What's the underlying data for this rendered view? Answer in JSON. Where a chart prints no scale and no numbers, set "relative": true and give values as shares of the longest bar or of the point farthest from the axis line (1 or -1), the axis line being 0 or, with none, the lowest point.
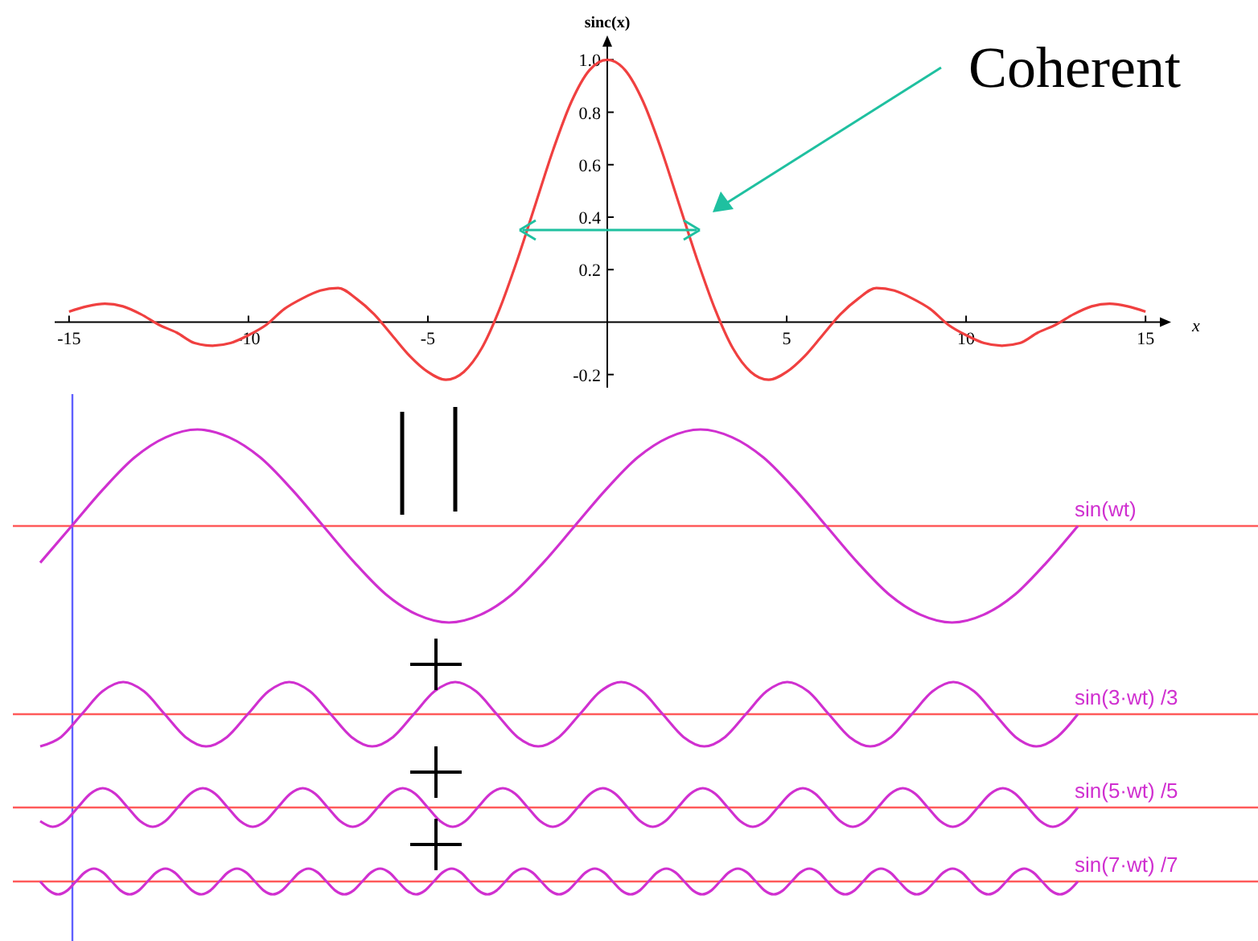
{
  "chart_data": [
    {
      "type": "line",
      "xlabel": "x",
      "ylabel": "sinc(x)",
      "annotations": [
        "Coherent"
      ],
      "x": [
        -15,
        -14.5,
        -14,
        -13.5,
        -13,
        -12.5,
        -12,
        -11.5,
        -11,
        -10.5,
        -10,
        -9.5,
        -9,
        -8.5,
        -8,
        -7.5,
        -7,
        -6.5,
        -6,
        -5.5,
        -5,
        -4.5,
        -4,
        -3.5,
        -3,
        -2.5,
        -2,
        -1.5,
        -1,
        -0.5,
        0,
        0.5,
        1,
        1.5,
        2,
        2.5,
        3,
        3.5,
        4,
        4.5,
        5,
        5.5,
        6,
        6.5,
        7,
        7.5,
        8,
        8.5,
        9,
        9.5,
        10,
        10.5,
        11,
        11.5,
        12,
        12.5,
        13,
        13.5,
        14,
        14.5,
        15
      ],
      "series": [
        {
          "color": "#f04040",
          "values": [
            0.04,
            0.06,
            0.07,
            0.06,
            0.03,
            -0.01,
            -0.04,
            -0.08,
            -0.09,
            -0.08,
            -0.05,
            -0.01,
            0.05,
            0.09,
            0.12,
            0.13,
            0.09,
            0.03,
            -0.05,
            -0.13,
            -0.19,
            -0.22,
            -0.19,
            -0.1,
            0.05,
            0.24,
            0.45,
            0.66,
            0.84,
            0.96,
            1,
            0.96,
            0.84,
            0.66,
            0.45,
            0.24,
            0.05,
            -0.1,
            -0.19,
            -0.22,
            -0.19,
            -0.13,
            -0.05,
            0.03,
            0.09,
            0.13,
            0.12,
            0.09,
            0.05,
            -0.01,
            -0.05,
            -0.08,
            -0.09,
            -0.08,
            -0.04,
            -0.01,
            0.03,
            0.06,
            0.07,
            0.06,
            0.04
          ]
        }
      ],
      "xlim": [
        -15.4,
        15.4
      ],
      "ylim": [
        -0.25,
        1.05
      ],
      "xticks": [
        -15,
        -10,
        -5,
        5,
        10,
        15
      ],
      "yticks": [
        -0.2,
        0.2,
        0.4,
        0.6,
        0.8,
        {
          "value": 1,
          "label": "1.0"
        }
      ]
    },
    {
      "type": "line",
      "relative": true,
      "ref_lines": [
        {
          "axis": "y",
          "value": 0,
          "color": "#ff5a5a"
        }
      ],
      "categories": [
        null,
        null,
        null,
        null,
        null,
        null,
        null,
        null,
        null,
        null,
        null,
        null,
        null,
        null,
        null,
        null,
        null,
        null,
        null,
        null,
        null,
        null,
        null,
        null,
        null,
        null,
        null,
        null,
        null,
        null,
        null,
        null,
        null,
        null
      ],
      "series": [
        {
          "name": "sin(wt)",
          "color": "#d030d0",
          "values": [
            -0.38,
            0,
            0.38,
            0.71,
            0.92,
            1,
            0.92,
            0.71,
            0.38,
            0,
            -0.38,
            -0.71,
            -0.92,
            -1,
            -0.92,
            -0.71,
            -0.38,
            0,
            0.38,
            0.71,
            0.92,
            1,
            0.92,
            0.71,
            0.38,
            0,
            -0.38,
            -0.71,
            -0.92,
            -1,
            -0.92,
            -0.71,
            -0.38,
            0
          ]
        }
      ]
    },
    {
      "type": "line",
      "relative": true,
      "ref_lines": [
        {
          "axis": "y",
          "value": 0,
          "color": "#ff5a5a"
        }
      ],
      "categories": [
        null,
        null,
        null,
        null,
        null,
        null,
        null,
        null,
        null,
        null,
        null,
        null,
        null,
        null,
        null,
        null,
        null,
        null,
        null,
        null,
        null,
        null,
        null,
        null,
        null,
        null,
        null,
        null,
        null,
        null,
        null,
        null,
        null,
        null,
        null,
        null,
        null,
        null,
        null,
        null,
        null,
        null,
        null,
        null,
        null,
        null,
        null,
        null,
        null,
        null,
        null
      ],
      "series": [
        {
          "name": "sin(3·wt) /3",
          "color": "#d030d0",
          "values": [
            -1,
            -0.71,
            0,
            0.71,
            1,
            0.71,
            0,
            -0.71,
            -1,
            -0.71,
            0,
            0.71,
            1,
            0.71,
            0,
            -0.71,
            -1,
            -0.71,
            0,
            0.71,
            1,
            0.71,
            0,
            -0.71,
            -1,
            -0.71,
            0,
            0.71,
            1,
            0.71,
            0,
            -0.71,
            -1,
            -0.71,
            0,
            0.71,
            1,
            0.71,
            0,
            -0.71,
            -1,
            -0.71,
            0,
            0.71,
            1,
            0.71,
            0,
            -0.71,
            -1,
            -0.71,
            0
          ]
        }
      ]
    },
    {
      "type": "line",
      "relative": true,
      "ref_lines": [
        {
          "axis": "y",
          "value": 0,
          "color": "#ff5a5a"
        }
      ],
      "categories": [
        null,
        null,
        null,
        null,
        null,
        null,
        null,
        null,
        null,
        null,
        null,
        null,
        null,
        null,
        null,
        null,
        null,
        null,
        null,
        null,
        null,
        null,
        null,
        null,
        null,
        null,
        null,
        null,
        null,
        null,
        null,
        null,
        null,
        null,
        null,
        null,
        null,
        null,
        null,
        null,
        null,
        null,
        null,
        null,
        null,
        null,
        null,
        null,
        null,
        null,
        null,
        null,
        null,
        null,
        null,
        null,
        null,
        null,
        null,
        null,
        null,
        null,
        null,
        null,
        null,
        null,
        null,
        null,
        null,
        null,
        null,
        null,
        null,
        null,
        null,
        null,
        null,
        null,
        null,
        null,
        null,
        null,
        null,
        null
      ],
      "series": [
        {
          "name": "sin(5·wt) /5",
          "color": "#d030d0",
          "values": [
            -0.71,
            -1,
            -0.71,
            0,
            0.71,
            1,
            0.71,
            0,
            -0.71,
            -1,
            -0.71,
            0,
            0.71,
            1,
            0.71,
            0,
            -0.71,
            -1,
            -0.71,
            0,
            0.71,
            1,
            0.71,
            0,
            -0.71,
            -1,
            -0.71,
            0,
            0.71,
            1,
            0.71,
            0,
            -0.71,
            -1,
            -0.71,
            0,
            0.71,
            1,
            0.71,
            0,
            -0.71,
            -1,
            -0.71,
            0,
            0.71,
            1,
            0.71,
            0,
            -0.71,
            -1,
            -0.71,
            0,
            0.71,
            1,
            0.71,
            0,
            -0.71,
            -1,
            -0.71,
            0,
            0.71,
            1,
            0.71,
            0,
            -0.71,
            -1,
            -0.71,
            0,
            0.71,
            1,
            0.71,
            0,
            -0.71,
            -1,
            -0.71,
            0,
            0.71,
            1,
            0.71,
            0,
            -0.71,
            -1,
            -0.71,
            0
          ]
        }
      ]
    },
    {
      "type": "line",
      "relative": true,
      "ref_lines": [
        {
          "axis": "y",
          "value": 0,
          "color": "#ff5a5a"
        }
      ],
      "categories": [
        null,
        null,
        null,
        null,
        null,
        null,
        null,
        null,
        null,
        null,
        null,
        null,
        null,
        null,
        null,
        null,
        null,
        null,
        null,
        null,
        null,
        null,
        null,
        null,
        null,
        null,
        null,
        null,
        null,
        null,
        null,
        null,
        null,
        null,
        null,
        null,
        null,
        null,
        null,
        null,
        null,
        null,
        null,
        null,
        null,
        null,
        null,
        null,
        null,
        null,
        null,
        null,
        null,
        null,
        null,
        null,
        null,
        null,
        null,
        null,
        null,
        null,
        null,
        null,
        null,
        null,
        null,
        null,
        null,
        null,
        null,
        null,
        null,
        null,
        null,
        null,
        null,
        null,
        null,
        null,
        null,
        null,
        null,
        null,
        null,
        null,
        null,
        null,
        null,
        null,
        null,
        null,
        null,
        null,
        null,
        null,
        null,
        null,
        null,
        null,
        null,
        null,
        null,
        null,
        null,
        null,
        null,
        null,
        null,
        null,
        null,
        null,
        null,
        null,
        null,
        null,
        null
      ],
      "series": [
        {
          "name": "sin(7·wt) /7",
          "color": "#d030d0",
          "values": [
            0,
            -0.71,
            -1,
            -0.71,
            0,
            0.71,
            1,
            0.71,
            0,
            -0.71,
            -1,
            -0.71,
            0,
            0.71,
            1,
            0.71,
            0,
            -0.71,
            -1,
            -0.71,
            0,
            0.71,
            1,
            0.71,
            0,
            -0.71,
            -1,
            -0.71,
            0,
            0.71,
            1,
            0.71,
            0,
            -0.71,
            -1,
            -0.71,
            0,
            0.71,
            1,
            0.71,
            0,
            -0.71,
            -1,
            -0.71,
            0,
            0.71,
            1,
            0.71,
            0,
            -0.71,
            -1,
            -0.71,
            0,
            0.71,
            1,
            0.71,
            0,
            -0.71,
            -1,
            -0.71,
            0,
            0.71,
            1,
            0.71,
            0,
            -0.71,
            -1,
            -0.71,
            0,
            0.71,
            1,
            0.71,
            0,
            -0.71,
            -1,
            -0.71,
            0,
            0.71,
            1,
            0.71,
            0,
            -0.71,
            -1,
            -0.71,
            0,
            0.71,
            1,
            0.71,
            0,
            -0.71,
            -1,
            -0.71,
            0,
            0.71,
            1,
            0.71,
            0,
            -0.71,
            -1,
            -0.71,
            0,
            0.71,
            1,
            0.71,
            0,
            -0.71,
            -1,
            -0.71,
            0,
            0.71,
            1,
            0.71,
            0,
            -0.71,
            -1,
            -0.71,
            0
          ]
        }
      ]
    }
  ]
}
